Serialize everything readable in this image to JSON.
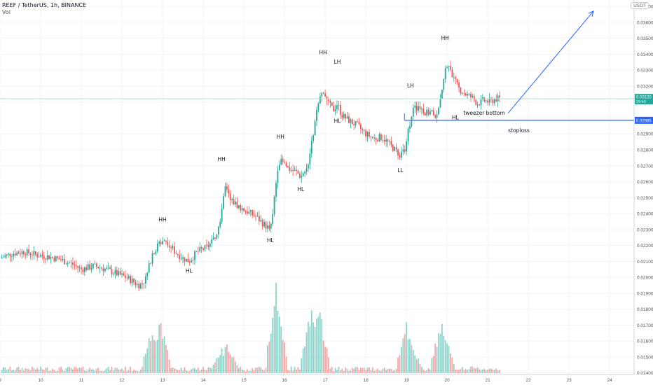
{
  "header": {
    "title": "REEF / TetherUS, 1h, BINANCE",
    "indicator": "Vol",
    "currency_button": "USDT"
  },
  "colors": {
    "up": "#26a69a",
    "down": "#ef5350",
    "vol_up": "#8fd3cb",
    "vol_down": "#f4a7a5",
    "drawing": "#2962ff",
    "price_line": "#a6e3dc",
    "grid": "#f0f3fa"
  },
  "chart_data": {
    "type": "candlestick",
    "symbol": "REEF / TetherUS",
    "interval": "1h",
    "exchange": "BINANCE",
    "y_axis_ticks": [
      "0.03700",
      "0.03600",
      "0.03500",
      "0.03400",
      "0.03300",
      "0.03200",
      "0.03100",
      "0.02900",
      "0.02800",
      "0.02700",
      "0.02600",
      "0.02500",
      "0.02400",
      "0.02300",
      "0.02200",
      "0.02100",
      "0.02000",
      "0.01900",
      "0.01800",
      "0.01700",
      "0.01600",
      "0.01500",
      "0.01400"
    ],
    "ylim": [
      0.0139,
      0.0374
    ],
    "x_axis_ticks": [
      "9",
      "10",
      "11",
      "12",
      "13",
      "14",
      "15",
      "16",
      "17",
      "18",
      "19",
      "20",
      "21",
      "22",
      "23",
      "24"
    ],
    "xlim": [
      9,
      24.6
    ],
    "last_price": {
      "label": "0.03120",
      "countdown": "29:40"
    },
    "stoploss_price": {
      "label": "0.02985"
    },
    "price_path": [
      [
        9.0,
        0.0212
      ],
      [
        9.3,
        0.0215
      ],
      [
        9.6,
        0.0216
      ],
      [
        9.9,
        0.0214
      ],
      [
        10.2,
        0.0213
      ],
      [
        10.5,
        0.0211
      ],
      [
        10.8,
        0.0208
      ],
      [
        11.0,
        0.0205
      ],
      [
        11.3,
        0.0207
      ],
      [
        11.5,
        0.0206
      ],
      [
        11.8,
        0.0203
      ],
      [
        12.1,
        0.02
      ],
      [
        12.3,
        0.0197
      ],
      [
        12.4,
        0.0195
      ],
      [
        12.5,
        0.0196
      ],
      [
        12.6,
        0.02
      ],
      [
        12.75,
        0.0215
      ],
      [
        13.0,
        0.0224
      ],
      [
        13.1,
        0.0223
      ],
      [
        13.3,
        0.0216
      ],
      [
        13.5,
        0.0212
      ],
      [
        13.65,
        0.021
      ],
      [
        13.85,
        0.0216
      ],
      [
        14.1,
        0.0219
      ],
      [
        14.3,
        0.0225
      ],
      [
        14.45,
        0.024
      ],
      [
        14.55,
        0.0258
      ],
      [
        14.7,
        0.0248
      ],
      [
        14.9,
        0.0244
      ],
      [
        15.1,
        0.0241
      ],
      [
        15.3,
        0.0238
      ],
      [
        15.5,
        0.0233
      ],
      [
        15.65,
        0.023
      ],
      [
        15.7,
        0.0236
      ],
      [
        15.75,
        0.025
      ],
      [
        15.85,
        0.0273
      ],
      [
        15.95,
        0.0272
      ],
      [
        16.1,
        0.0268
      ],
      [
        16.3,
        0.0266
      ],
      [
        16.4,
        0.0263
      ],
      [
        16.55,
        0.0268
      ],
      [
        16.65,
        0.0281
      ],
      [
        16.8,
        0.0305
      ],
      [
        16.95,
        0.0318
      ],
      [
        17.05,
        0.031
      ],
      [
        17.2,
        0.0305
      ],
      [
        17.3,
        0.0309
      ],
      [
        17.4,
        0.0302
      ],
      [
        17.6,
        0.0298
      ],
      [
        17.8,
        0.0295
      ],
      [
        18.0,
        0.029
      ],
      [
        18.2,
        0.0287
      ],
      [
        18.4,
        0.0288
      ],
      [
        18.6,
        0.0283
      ],
      [
        18.75,
        0.0279
      ],
      [
        18.85,
        0.0277
      ],
      [
        18.95,
        0.028
      ],
      [
        19.05,
        0.0293
      ],
      [
        19.15,
        0.0305
      ],
      [
        19.3,
        0.0307
      ],
      [
        19.5,
        0.0303
      ],
      [
        19.65,
        0.0304
      ],
      [
        19.75,
        0.03
      ],
      [
        19.85,
        0.0312
      ],
      [
        19.95,
        0.033
      ],
      [
        20.05,
        0.0334
      ],
      [
        20.15,
        0.0325
      ],
      [
        20.3,
        0.0318
      ],
      [
        20.45,
        0.0315
      ],
      [
        20.6,
        0.0313
      ],
      [
        20.75,
        0.0309
      ],
      [
        20.9,
        0.0311
      ],
      [
        21.05,
        0.031
      ],
      [
        21.2,
        0.0312
      ],
      [
        21.3,
        0.0312
      ]
    ],
    "volume_spikes": [
      [
        12.75,
        0.55
      ],
      [
        12.95,
        0.6
      ],
      [
        14.45,
        0.3
      ],
      [
        14.6,
        0.35
      ],
      [
        15.8,
        1.0
      ],
      [
        16.65,
        0.75
      ],
      [
        16.85,
        0.75
      ],
      [
        19.0,
        0.55
      ],
      [
        19.15,
        0.3
      ],
      [
        19.85,
        0.58
      ],
      [
        19.95,
        0.45
      ]
    ],
    "annotations": {
      "labels": [
        {
          "text": "HH",
          "x": 13.0,
          "price": 0.0235
        },
        {
          "text": "HL",
          "x": 13.65,
          "price": 0.0203
        },
        {
          "text": "HH",
          "x": 14.45,
          "price": 0.0273
        },
        {
          "text": "HL",
          "x": 15.65,
          "price": 0.0222
        },
        {
          "text": "HH",
          "x": 15.9,
          "price": 0.0287
        },
        {
          "text": "HL",
          "x": 16.4,
          "price": 0.0254
        },
        {
          "text": "HH",
          "x": 16.95,
          "price": 0.034
        },
        {
          "text": "LH",
          "x": 17.3,
          "price": 0.0334
        },
        {
          "text": "HL",
          "x": 17.3,
          "price": 0.0297
        },
        {
          "text": "LL",
          "x": 18.85,
          "price": 0.0266
        },
        {
          "text": "LH",
          "x": 19.1,
          "price": 0.0319
        },
        {
          "text": "HH",
          "x": 19.95,
          "price": 0.0349
        },
        {
          "text": "HL",
          "x": 20.2,
          "price": 0.0299
        },
        {
          "text": "tweezer bottom",
          "x": 20.4,
          "price": 0.0302
        },
        {
          "text": "stoploss",
          "x": 21.5,
          "price": 0.0291
        }
      ],
      "arrow": {
        "from": [
          21.5,
          0.0303
        ],
        "to": [
          23.6,
          0.0367
        ]
      }
    }
  }
}
